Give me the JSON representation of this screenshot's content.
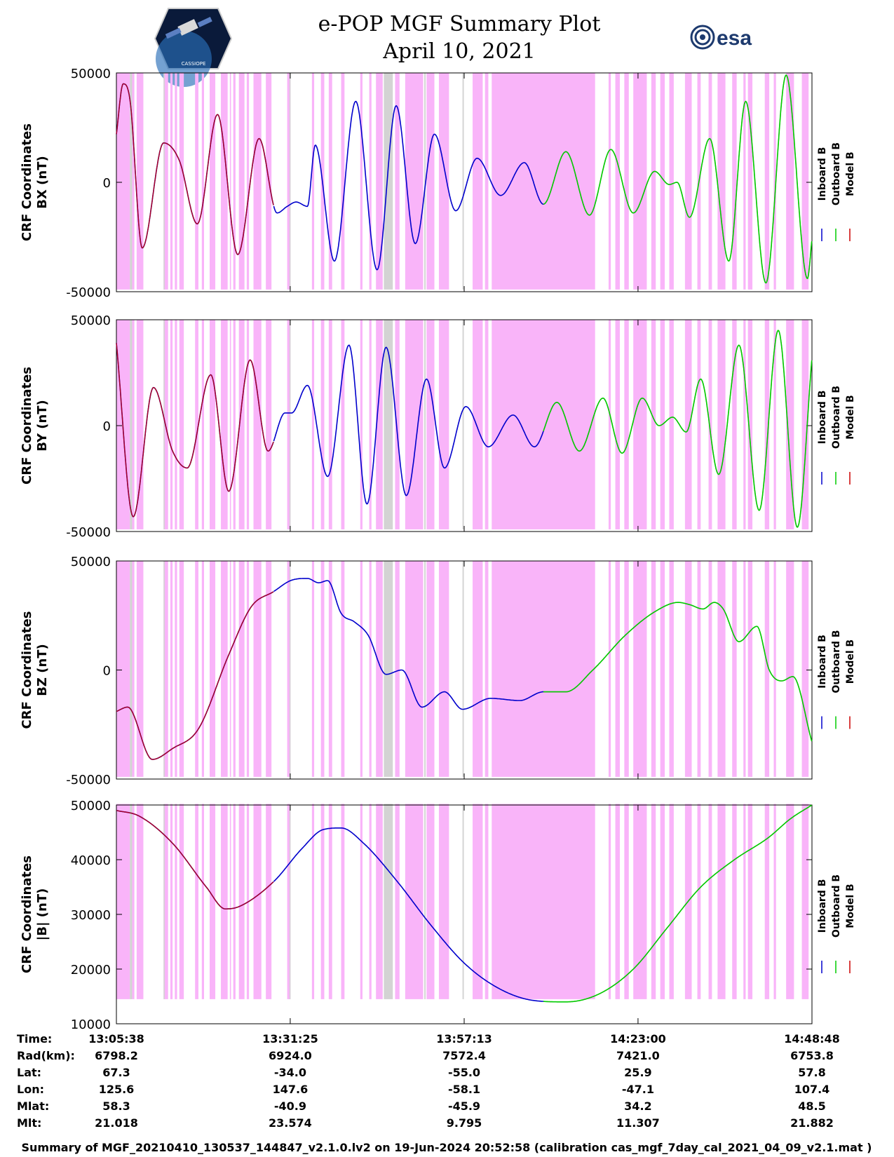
{
  "title": "e-POP MGF Summary Plot",
  "date": "April 10, 2021",
  "logo_left_text": "CASSIOPE",
  "logo_right_text": "esa",
  "colors": {
    "inboard": "#0000cc",
    "outboard": "#00cc00",
    "model": "#cc0000",
    "pink": "#f9b4f9",
    "gray": "#d3d3d3"
  },
  "chart_data": {
    "type": "line",
    "x_range": [
      0,
      6190
    ],
    "x_units": "seconds from 13:05:38",
    "time_ticks": [
      0,
      1547,
      3095,
      4642,
      6190
    ],
    "time_labels": [
      "13:05:38",
      "13:31:25",
      "13:57:13",
      "14:23:00",
      "14:48:48"
    ],
    "legend": [
      "Inboard B",
      "Outboard B",
      "Model B"
    ],
    "segments": {
      "model_to_inboard_s": 1400,
      "inboard_to_outboard_s": 3800
    },
    "shading": {
      "pink_intervals": [
        [
          0,
          120
        ],
        [
          140,
          160
        ],
        [
          180,
          240
        ],
        [
          420,
          460
        ],
        [
          480,
          500
        ],
        [
          520,
          540
        ],
        [
          560,
          600
        ],
        [
          700,
          730
        ],
        [
          760,
          780
        ],
        [
          830,
          880
        ],
        [
          930,
          990
        ],
        [
          1010,
          1020
        ],
        [
          1040,
          1060
        ],
        [
          1090,
          1140
        ],
        [
          1160,
          1180
        ],
        [
          1220,
          1290
        ],
        [
          1330,
          1380
        ],
        [
          1520,
          1550
        ],
        [
          1740,
          1760
        ],
        [
          1820,
          1850
        ],
        [
          1890,
          1920
        ],
        [
          2000,
          2030
        ],
        [
          2170,
          2190
        ],
        [
          2250,
          2270
        ],
        [
          2310,
          2370
        ],
        [
          2480,
          2520
        ],
        [
          2570,
          2730
        ],
        [
          2760,
          2830
        ],
        [
          2870,
          2960
        ],
        [
          3170,
          3260
        ],
        [
          3280,
          3310
        ],
        [
          3340,
          4260
        ],
        [
          4380,
          4400
        ],
        [
          4440,
          4480
        ],
        [
          4520,
          4560
        ],
        [
          4600,
          4720
        ],
        [
          4760,
          4800
        ],
        [
          4840,
          4880
        ],
        [
          4920,
          4960
        ],
        [
          5060,
          5120
        ],
        [
          5170,
          5200
        ],
        [
          5270,
          5300
        ],
        [
          5350,
          5420
        ],
        [
          5480,
          5520
        ],
        [
          5580,
          5600
        ],
        [
          5620,
          5660
        ],
        [
          5770,
          5810
        ],
        [
          5850,
          5870
        ],
        [
          5960,
          6030
        ],
        [
          6100,
          6160
        ]
      ],
      "gray_intervals": [
        [
          120,
          140
        ],
        [
          420,
          430
        ],
        [
          1540,
          1548
        ],
        [
          2380,
          2460
        ],
        [
          2740,
          2752
        ],
        [
          3080,
          3092
        ]
      ]
    },
    "panels": [
      {
        "name": "BX",
        "ylabel_line1": "CRF Coordinates",
        "ylabel_line2": "BX (nT)",
        "ylim": [
          -50000,
          50000
        ],
        "yticks": [
          50000,
          0,
          -50000
        ],
        "shade_ylim": [
          -49000,
          50000
        ],
        "points": [
          [
            0,
            22000
          ],
          [
            60,
            45000
          ],
          [
            120,
            38000
          ],
          [
            230,
            -30000
          ],
          [
            420,
            18000
          ],
          [
            560,
            10000
          ],
          [
            720,
            -19000
          ],
          [
            900,
            31000
          ],
          [
            1080,
            -33000
          ],
          [
            1270,
            20000
          ],
          [
            1430,
            -14000
          ],
          [
            1520,
            -11000
          ],
          [
            1600,
            -9000
          ],
          [
            1700,
            -11000
          ],
          [
            1770,
            17000
          ],
          [
            1940,
            -36000
          ],
          [
            2130,
            37000
          ],
          [
            2320,
            -40000
          ],
          [
            2490,
            35000
          ],
          [
            2660,
            -28000
          ],
          [
            2830,
            22000
          ],
          [
            3020,
            -13000
          ],
          [
            3210,
            11000
          ],
          [
            3420,
            -6000
          ],
          [
            3630,
            9000
          ],
          [
            3800,
            -10000
          ],
          [
            4000,
            14000
          ],
          [
            4210,
            -15000
          ],
          [
            4400,
            15000
          ],
          [
            4600,
            -14000
          ],
          [
            4790,
            5000
          ],
          [
            4920,
            -1000
          ],
          [
            4990,
            0
          ],
          [
            5100,
            -16000
          ],
          [
            5280,
            20000
          ],
          [
            5450,
            -36000
          ],
          [
            5600,
            37000
          ],
          [
            5780,
            -46000
          ],
          [
            5960,
            49000
          ],
          [
            6150,
            -44000
          ],
          [
            6190,
            -26000
          ]
        ]
      },
      {
        "name": "BY",
        "ylabel_line1": "CRF Coordinates",
        "ylabel_line2": "BY (nT)",
        "ylim": [
          -50000,
          50000
        ],
        "yticks": [
          50000,
          0,
          -50000
        ],
        "shade_ylim": [
          -49000,
          50000
        ],
        "points": [
          [
            0,
            39000
          ],
          [
            150,
            -43000
          ],
          [
            330,
            18000
          ],
          [
            500,
            -12000
          ],
          [
            630,
            -20000
          ],
          [
            840,
            24000
          ],
          [
            1000,
            -31000
          ],
          [
            1190,
            31000
          ],
          [
            1350,
            -12000
          ],
          [
            1500,
            6000
          ],
          [
            1560,
            6000
          ],
          [
            1700,
            19000
          ],
          [
            1880,
            -24000
          ],
          [
            2070,
            38000
          ],
          [
            2230,
            -37000
          ],
          [
            2400,
            37000
          ],
          [
            2580,
            -33000
          ],
          [
            2760,
            22000
          ],
          [
            2920,
            -20000
          ],
          [
            3110,
            9000
          ],
          [
            3310,
            -10000
          ],
          [
            3530,
            5000
          ],
          [
            3720,
            -10000
          ],
          [
            3920,
            11000
          ],
          [
            4120,
            -12000
          ],
          [
            4330,
            13000
          ],
          [
            4500,
            -13000
          ],
          [
            4680,
            13000
          ],
          [
            4830,
            0
          ],
          [
            4950,
            4000
          ],
          [
            5070,
            -3000
          ],
          [
            5200,
            22000
          ],
          [
            5360,
            -23000
          ],
          [
            5540,
            38000
          ],
          [
            5720,
            -40000
          ],
          [
            5890,
            45000
          ],
          [
            6060,
            -48000
          ],
          [
            6190,
            32000
          ]
        ]
      },
      {
        "name": "BZ",
        "ylabel_line1": "CRF Coordinates",
        "ylabel_line2": "BZ (nT)",
        "ylim": [
          -50000,
          50000
        ],
        "yticks": [
          50000,
          0,
          -50000
        ],
        "shade_ylim": [
          -49000,
          50000
        ],
        "points": [
          [
            0,
            -19000
          ],
          [
            100,
            -17000
          ],
          [
            320,
            -41000
          ],
          [
            500,
            -36000
          ],
          [
            730,
            -27000
          ],
          [
            1000,
            7000
          ],
          [
            1200,
            29000
          ],
          [
            1400,
            36000
          ],
          [
            1550,
            41000
          ],
          [
            1700,
            42000
          ],
          [
            1800,
            40000
          ],
          [
            1880,
            41000
          ],
          [
            2000,
            26000
          ],
          [
            2120,
            22000
          ],
          [
            2240,
            16000
          ],
          [
            2400,
            -2000
          ],
          [
            2540,
            0
          ],
          [
            2720,
            -17000
          ],
          [
            2920,
            -10000
          ],
          [
            3080,
            -18000
          ],
          [
            3330,
            -13000
          ],
          [
            3590,
            -14000
          ],
          [
            3800,
            -10000
          ],
          [
            4000,
            -10000
          ],
          [
            4240,
            0
          ],
          [
            4530,
            16000
          ],
          [
            4800,
            27000
          ],
          [
            5000,
            31000
          ],
          [
            5100,
            30000
          ],
          [
            5220,
            28000
          ],
          [
            5320,
            31000
          ],
          [
            5400,
            28000
          ],
          [
            5540,
            13000
          ],
          [
            5700,
            20000
          ],
          [
            5810,
            0
          ],
          [
            5920,
            -5000
          ],
          [
            6020,
            -3000
          ],
          [
            6190,
            -33000
          ]
        ]
      },
      {
        "name": "|B|",
        "ylabel_line1": "CRF Coordinates",
        "ylabel_line2": "|B| (nT)",
        "ylim": [
          10000,
          50000
        ],
        "yticks": [
          50000,
          40000,
          30000,
          20000,
          10000
        ],
        "shade_ylim": [
          14500,
          50200
        ],
        "points": [
          [
            0,
            49000
          ],
          [
            200,
            48000
          ],
          [
            500,
            43000
          ],
          [
            800,
            35000
          ],
          [
            970,
            31000
          ],
          [
            1100,
            31500
          ],
          [
            1400,
            36000
          ],
          [
            1650,
            42000
          ],
          [
            1840,
            45500
          ],
          [
            2000,
            45800
          ],
          [
            2200,
            43000
          ],
          [
            2500,
            36000
          ],
          [
            2800,
            28000
          ],
          [
            3100,
            21000
          ],
          [
            3400,
            16500
          ],
          [
            3700,
            14300
          ],
          [
            4000,
            14000
          ],
          [
            4300,
            15500
          ],
          [
            4600,
            20000
          ],
          [
            4900,
            27500
          ],
          [
            5200,
            35000
          ],
          [
            5500,
            40000
          ],
          [
            5800,
            44000
          ],
          [
            6000,
            47500
          ],
          [
            6190,
            50000
          ]
        ]
      }
    ]
  },
  "orbit_table": {
    "row_labels": [
      "Time:",
      "Rad(km):",
      "Lat:",
      "Lon:",
      "Mlat:",
      "Mlt:"
    ],
    "columns": [
      [
        "13:05:38",
        "6798.2",
        "67.3",
        "125.6",
        "58.3",
        "21.018"
      ],
      [
        "13:31:25",
        "6924.0",
        "-34.0",
        "147.6",
        "-40.9",
        "23.574"
      ],
      [
        "13:57:13",
        "7572.4",
        "-55.0",
        "-58.1",
        "-45.9",
        "9.795"
      ],
      [
        "14:23:00",
        "7421.0",
        "25.9",
        "-47.1",
        "34.2",
        "11.307"
      ],
      [
        "14:48:48",
        "6753.8",
        "57.8",
        "107.4",
        "48.5",
        "21.882"
      ]
    ]
  },
  "footer": "Summary of MGF_20210410_130537_144847_v2.1.0.lv2 on 19-Jun-2024 20:52:58 (calibration cas_mgf_7day_cal_2021_04_09_v2.1.mat )"
}
